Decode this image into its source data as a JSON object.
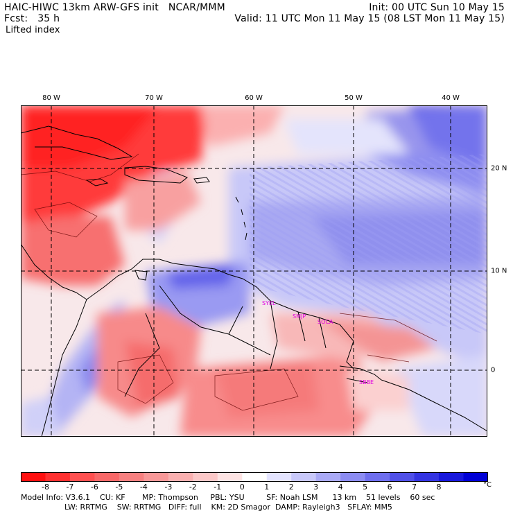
{
  "header": {
    "line1_left": "HAIC-HIWC 13km ARW-GFS init   NCAR/MMM",
    "line1_right": "Init: 00 UTC Sun 10 May 15",
    "line2_left": "Fcst:   35 h",
    "line2_right": "Valid: 11 UTC Mon 11 May 15 (08 LST Mon 11 May 15)",
    "field_name": "Lifted index"
  },
  "map": {
    "lon_labels": [
      "80 W",
      "70 W",
      "60 W",
      "50 W",
      "40 W"
    ],
    "lat_labels": [
      "20 N",
      "10 N",
      "0"
    ],
    "stations": [
      "SYEL",
      "SMJP",
      "SOCA",
      "SBBE"
    ],
    "colors": {
      "strong_negative": "#ff2020",
      "moderate_negative": "#f77f7f",
      "weak_negative": "#fcd0d0",
      "neutral": "#ffffff",
      "weak_positive": "#d8d8ff",
      "moderate_positive": "#7878f0",
      "strong_positive": "#2020e0"
    }
  },
  "colorbar": {
    "ticks": [
      "-8",
      "-7",
      "-6",
      "-5",
      "-4",
      "-3",
      "-2",
      "-1",
      "0",
      "1",
      "2",
      "3",
      "4",
      "5",
      "6",
      "7",
      "8"
    ],
    "unit": "°C",
    "colors": [
      "#ff1010",
      "#ff3030",
      "#ff5050",
      "#f86868",
      "#f78080",
      "#f89898",
      "#fab0b0",
      "#fcc8c8",
      "#fee4e4",
      "#ffffff",
      "#e4e4ff",
      "#c8c8fa",
      "#aaaaf6",
      "#8c8cf2",
      "#6e6eee",
      "#5050e8",
      "#3434e2",
      "#1818dc",
      "#0000d6"
    ]
  },
  "footer": {
    "line1": "Model Info: V3.6.1    CU: KF       MP: Thompson     PBL: YSU         SF: Noah LSM      13 km    51 levels    60 sec",
    "line2": "                  LW: RRTMG    SW: RRTMG   DIFF: full    KM: 2D Smagor  DAMP: Rayleigh3   SFLAY: MM5"
  }
}
